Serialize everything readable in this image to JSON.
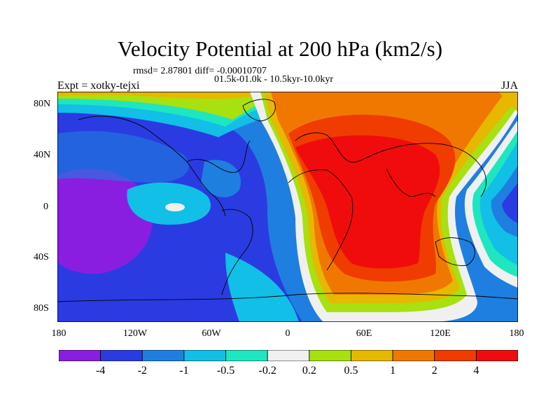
{
  "title": "Velocity Potential at 200 hPa (km2/s)",
  "stats_line": "rmsd= 2.87801 diff= -0.00010707",
  "period_line": "01.5k-01.0k - 10.5kyr-10.0kyr",
  "experiment": "Expt = xotky-tejxi",
  "season": "JJA",
  "y_ticks": [
    "80N",
    "40N",
    "0",
    "40S",
    "80S"
  ],
  "x_ticks": [
    "180",
    "120W",
    "60W",
    "0",
    "60E",
    "120E",
    "180"
  ],
  "colorbar": {
    "colors": [
      "#8a1ee0",
      "#2b3be2",
      "#1e7fe0",
      "#12bfe6",
      "#1ee6c0",
      "#f0f0f0",
      "#a8e010",
      "#e6b800",
      "#f07800",
      "#f03c00",
      "#f00c0c"
    ],
    "labels": [
      "-4",
      "-2",
      "-1",
      "-0.5",
      "-0.2",
      "0.2",
      "0.5",
      "1",
      "2",
      "4"
    ]
  }
}
